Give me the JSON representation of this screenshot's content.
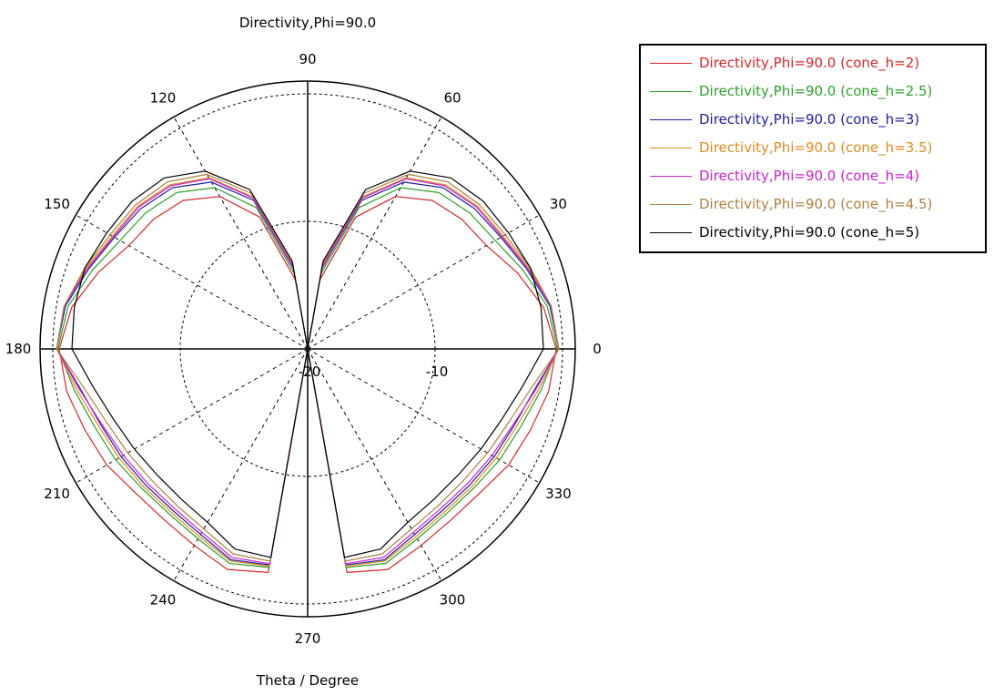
{
  "chart_data": {
    "type": "polar-line",
    "title": "Directivity,Phi=90.0",
    "xlabel": "Theta / Degree",
    "angle_ticks": [
      "0",
      "30",
      "60",
      "90",
      "120",
      "150",
      "180",
      "210",
      "240",
      "270",
      "300",
      "330"
    ],
    "angle_tick_values": [
      0,
      30,
      60,
      90,
      120,
      150,
      180,
      210,
      240,
      270,
      300,
      330
    ],
    "radial_ticks": [
      "-20",
      "-10"
    ],
    "radial_tick_values": [
      -20,
      -10
    ],
    "r_range": [
      -20,
      1
    ],
    "grid": true,
    "legend_position": "top-right",
    "theta_sample": [
      0,
      10,
      20,
      30,
      40,
      50,
      60,
      70,
      80,
      90,
      100,
      110,
      120,
      130,
      140,
      150,
      160,
      170,
      180,
      190,
      200,
      210,
      220,
      230,
      240,
      250,
      260,
      270,
      280,
      290,
      300,
      310,
      320,
      330,
      340,
      350
    ],
    "series": [
      {
        "name": "Directivity,Phi=90.0 (cone_h=2)",
        "color": "#d62728",
        "values": [
          -0.5,
          -1.2,
          -2.5,
          -3.8,
          -4.2,
          -4.8,
          -6.2,
          -9.0,
          -14.5,
          -20,
          -14.5,
          -9.0,
          -6.2,
          -4.8,
          -4.2,
          -3.8,
          -2.5,
          -1.2,
          -0.5,
          -0.8,
          -1.4,
          -1.8,
          -2.4,
          -2.5,
          -2.2,
          -1.6,
          -2.2,
          -20,
          -2.2,
          -1.6,
          -2.2,
          -2.5,
          -2.4,
          -1.8,
          -1.4,
          -0.8
        ]
      },
      {
        "name": "Directivity,Phi=90.0 (cone_h=2.5)",
        "color": "#2ca02c",
        "values": [
          -0.4,
          -0.9,
          -2.0,
          -3.0,
          -3.4,
          -4.0,
          -5.4,
          -8.2,
          -14.0,
          -20,
          -14.0,
          -8.2,
          -5.4,
          -4.0,
          -3.4,
          -3.0,
          -2.0,
          -0.9,
          -0.4,
          -1.4,
          -2.2,
          -2.6,
          -3.0,
          -3.1,
          -2.8,
          -2.1,
          -2.6,
          -20,
          -2.6,
          -2.1,
          -2.8,
          -3.1,
          -3.0,
          -2.6,
          -2.2,
          -1.4
        ]
      },
      {
        "name": "Directivity,Phi=90.0 (cone_h=3)",
        "color": "#1f1f9f",
        "values": [
          -0.3,
          -0.7,
          -1.7,
          -2.5,
          -2.9,
          -3.5,
          -4.9,
          -7.6,
          -13.6,
          -20,
          -13.6,
          -7.6,
          -4.9,
          -3.5,
          -2.9,
          -2.5,
          -1.7,
          -0.7,
          -0.3,
          -1.9,
          -2.7,
          -3.1,
          -3.4,
          -3.5,
          -3.2,
          -2.4,
          -2.8,
          -20,
          -2.8,
          -2.4,
          -3.2,
          -3.5,
          -3.4,
          -3.1,
          -2.7,
          -1.9
        ]
      },
      {
        "name": "Directivity,Phi=90.0 (cone_h=3.5)",
        "color": "#e08a1e",
        "values": [
          -0.3,
          -0.6,
          -1.5,
          -2.3,
          -2.6,
          -3.2,
          -4.5,
          -7.3,
          -13.4,
          -20,
          -13.4,
          -7.3,
          -4.5,
          -3.2,
          -2.6,
          -2.3,
          -1.5,
          -0.6,
          -0.3,
          -1.6,
          -2.5,
          -2.9,
          -3.2,
          -3.3,
          -3.0,
          -2.3,
          -2.7,
          -20,
          -2.7,
          -2.3,
          -3.0,
          -3.3,
          -3.2,
          -2.9,
          -2.5,
          -1.6
        ]
      },
      {
        "name": "Directivity,Phi=90.0 (cone_h=4)",
        "color": "#cc22cc",
        "values": [
          -0.3,
          -0.6,
          -1.6,
          -2.4,
          -2.7,
          -3.3,
          -4.6,
          -7.4,
          -13.5,
          -20,
          -13.5,
          -7.4,
          -4.6,
          -3.3,
          -2.7,
          -2.4,
          -1.6,
          -0.6,
          -0.3,
          -1.8,
          -2.8,
          -3.3,
          -3.6,
          -3.7,
          -3.4,
          -2.6,
          -2.9,
          -20,
          -2.9,
          -2.6,
          -3.4,
          -3.7,
          -3.6,
          -3.3,
          -2.8,
          -1.8
        ]
      },
      {
        "name": "Directivity,Phi=90.0 (cone_h=4.5)",
        "color": "#b08040",
        "values": [
          -0.3,
          -0.6,
          -1.4,
          -2.1,
          -2.4,
          -2.9,
          -4.2,
          -7.0,
          -13.2,
          -20,
          -13.2,
          -7.0,
          -4.2,
          -2.9,
          -2.4,
          -2.1,
          -1.4,
          -0.6,
          -0.3,
          -2.2,
          -3.2,
          -3.7,
          -4.0,
          -4.0,
          -3.7,
          -2.9,
          -3.1,
          -20,
          -3.1,
          -2.9,
          -3.7,
          -4.0,
          -4.0,
          -3.7,
          -3.2,
          -2.2
        ]
      },
      {
        "name": "Directivity,Phi=90.0 (cone_h=5)",
        "color": "#000000",
        "values": [
          -1.5,
          -1.4,
          -1.4,
          -1.8,
          -2.0,
          -2.5,
          -3.9,
          -6.7,
          -13.0,
          -20,
          -13.0,
          -6.7,
          -3.9,
          -2.5,
          -2.0,
          -1.8,
          -1.4,
          -1.4,
          -1.5,
          -2.9,
          -3.8,
          -4.3,
          -4.6,
          -4.6,
          -4.3,
          -3.3,
          -3.4,
          -20,
          -3.4,
          -3.3,
          -4.3,
          -4.6,
          -4.6,
          -4.3,
          -3.8,
          -2.9
        ]
      }
    ]
  }
}
